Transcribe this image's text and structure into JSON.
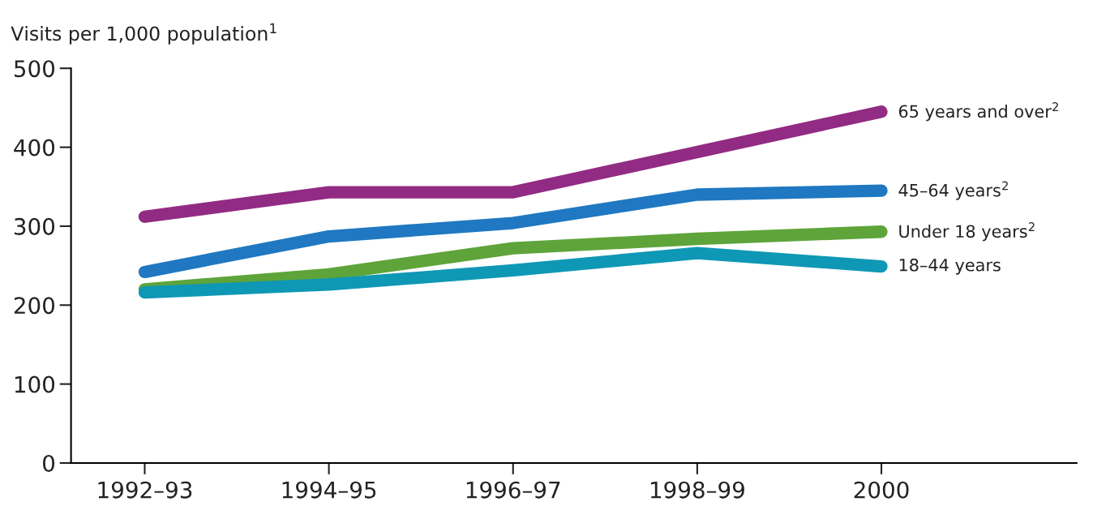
{
  "chart_data": {
    "type": "line",
    "ylabel": "Visits per 1,000 population$^{1}$",
    "categories": [
      "1992–93",
      "1994–95",
      "1996–97",
      "1998–99",
      "2000"
    ],
    "series": [
      {
        "name": "65 years and over$^{2}$",
        "color": "#922b83",
        "values": [
          312,
          343,
          343,
          394,
          445
        ]
      },
      {
        "name": "45–64 years$^{2}$",
        "color": "#1f78c1",
        "values": [
          242,
          287,
          304,
          340,
          345
        ]
      },
      {
        "name": "Under 18 years$^{2}$",
        "color": "#5ea43a",
        "values": [
          220,
          239,
          272,
          284,
          293
        ]
      },
      {
        "name": "18–44 years",
        "color": "#0f98b5",
        "values": [
          216,
          226,
          244,
          266,
          249
        ]
      }
    ],
    "ylim": [
      0,
      500
    ],
    "yticks": [
      0,
      100,
      200,
      300,
      400,
      500
    ],
    "grid": false,
    "legend": false,
    "line_style": "solid"
  }
}
